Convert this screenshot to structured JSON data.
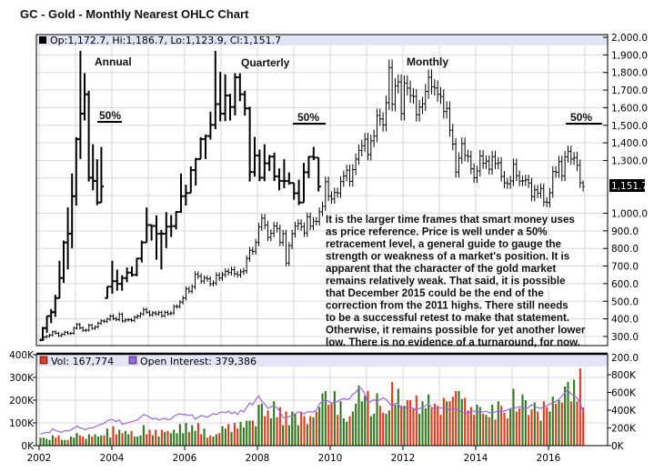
{
  "title": "GC - Gold - Monthly Nearest OHLC Chart",
  "price_legend": "Op:1,172.7, Hi:1,186.7, Lo:1,123.9, Cl:1,151.7",
  "last_price_tag": "1,151.7",
  "labels": {
    "annual": "Annual",
    "quarterly": "Quarterly",
    "monthly": "Monthly",
    "fifty_pct": "50%"
  },
  "annotation": {
    "lines": [
      "It is the larger time frames that smart money uses",
      "as price reference. Price is well under a 50%",
      "retracement level, a general guide to gauge the",
      "strength or weakness of a market's position.  It is",
      "apparent that the character of the gold market",
      "remains relatively weak.  That said, it is possible",
      "that December 2015 could be the end of the",
      "correction from the 2011 highs.  There still needs",
      "to be a successful retest to make that statement.",
      "Otherwise, it remains possible for yet another lower",
      "low.  There is no evidence of a turnaround, for now."
    ]
  },
  "volume_legend": {
    "vol": "Vol: 167,774",
    "oi": "Open Interest: 379,386"
  },
  "colors": {
    "up": "#2f7a1f",
    "down": "#e2391c",
    "open_interest": "#9a66e6",
    "legend_band": "#e4e4f7",
    "grid": "#d9d9d9"
  },
  "chart_data": [
    {
      "type": "ohlc",
      "title": "GC - Gold - Monthly Nearest OHLC Chart",
      "y_axis": {
        "side": "right",
        "ylim": [
          250,
          2000
        ],
        "ticks": [
          "2,000.0",
          "1,900.0",
          "1,800.0",
          "1,700.0",
          "1,600.0",
          "1,500.0",
          "1,400.0",
          "1,300.0",
          "1,000.0",
          "900.0",
          "800.0",
          "700.0",
          "600.0",
          "500.0",
          "400.0",
          "300.0",
          "200.0"
        ],
        "tick_values": [
          2000,
          1900,
          1800,
          1700,
          1600,
          1500,
          1400,
          1300,
          1000,
          900,
          800,
          700,
          600,
          500,
          400,
          300,
          200
        ]
      },
      "grid": true,
      "series": [
        {
          "name": "Annual",
          "start": "2002",
          "ohlc": [
            [
              279,
              354,
              278,
              348
            ],
            [
              348,
              417,
              320,
              416
            ],
            [
              416,
              456,
              375,
              438
            ],
            [
              438,
              537,
              411,
              518
            ],
            [
              518,
              730,
              517,
              632
            ],
            [
              632,
              845,
              604,
              834
            ],
            [
              834,
              1033,
              681,
              884
            ],
            [
              884,
              1226,
              802,
              1097
            ],
            [
              1097,
              1432,
              1044,
              1421
            ],
            [
              1421,
              1923,
              1308,
              1566
            ],
            [
              1566,
              1796,
              1527,
              1676
            ],
            [
              1676,
              1696,
              1180,
              1202
            ],
            [
              1202,
              1392,
              1131,
              1184
            ],
            [
              1184,
              1307,
              1046,
              1061
            ],
            [
              1061,
              1377,
              1061,
              1152
            ]
          ],
          "fifty_pct_level": 1510
        },
        {
          "name": "Quarterly",
          "start": "2006-Q1",
          "ohlc": [
            [
              518,
              584,
              517,
              583
            ],
            [
              583,
              730,
              543,
              614
            ],
            [
              614,
              680,
              560,
              599
            ],
            [
              599,
              648,
              560,
              632
            ],
            [
              632,
              692,
              608,
              663
            ],
            [
              663,
              697,
              640,
              650
            ],
            [
              650,
              745,
              642,
              743
            ],
            [
              743,
              845,
              720,
              834
            ],
            [
              834,
              1033,
              834,
              933
            ],
            [
              933,
              935,
              845,
              928
            ],
            [
              928,
              988,
              736,
              884
            ],
            [
              884,
              905,
              681,
              884
            ],
            [
              884,
              1007,
              802,
              924
            ],
            [
              924,
              990,
              865,
              927
            ],
            [
              927,
              1011,
              908,
              1008
            ],
            [
              1008,
              1226,
              1003,
              1097
            ],
            [
              1097,
              1162,
              1044,
              1115
            ],
            [
              1115,
              1266,
              1115,
              1245
            ],
            [
              1245,
              1315,
              1157,
              1308
            ],
            [
              1308,
              1432,
              1308,
              1421
            ],
            [
              1421,
              1447,
              1308,
              1439
            ],
            [
              1439,
              1577,
              1419,
              1502
            ],
            [
              1502,
              1923,
              1478,
              1620
            ],
            [
              1620,
              1803,
              1522,
              1566
            ],
            [
              1566,
              1790,
              1523,
              1669
            ],
            [
              1669,
              1679,
              1527,
              1604
            ],
            [
              1604,
              1796,
              1556,
              1773
            ],
            [
              1773,
              1796,
              1637,
              1676
            ],
            [
              1676,
              1696,
              1555,
              1596
            ],
            [
              1596,
              1605,
              1180,
              1234
            ],
            [
              1234,
              1434,
              1208,
              1328
            ],
            [
              1328,
              1362,
              1182,
              1202
            ],
            [
              1202,
              1392,
              1182,
              1284
            ],
            [
              1284,
              1331,
              1240,
              1322
            ],
            [
              1322,
              1345,
              1183,
              1210
            ],
            [
              1210,
              1255,
              1131,
              1184
            ],
            [
              1184,
              1307,
              1142,
              1183
            ],
            [
              1183,
              1232,
              1162,
              1172
            ],
            [
              1172,
              1172,
              1077,
              1114
            ],
            [
              1114,
              1191,
              1046,
              1061
            ],
            [
              1061,
              1287,
              1061,
              1233
            ],
            [
              1233,
              1325,
              1200,
              1321
            ],
            [
              1321,
              1377,
              1302,
              1316
            ],
            [
              1316,
              1316,
              1124,
              1152
            ]
          ],
          "fifty_pct_level": 1500
        },
        {
          "name": "Monthly",
          "start": "2002-01",
          "close": [
            282,
            296,
            301,
            308,
            326,
            318,
            304,
            312,
            324,
            316,
            318,
            347,
            368,
            348,
            334,
            336,
            364,
            346,
            354,
            375,
            388,
            386,
            398,
            416,
            402,
            396,
            426,
            388,
            394,
            395,
            391,
            409,
            416,
            428,
            453,
            438,
            423,
            434,
            428,
            436,
            417,
            437,
            429,
            433,
            470,
            470,
            495,
            518,
            570,
            557,
            583,
            654,
            643,
            614,
            632,
            627,
            599,
            604,
            648,
            632,
            651,
            670,
            663,
            680,
            656,
            650,
            667,
            673,
            743,
            789,
            783,
            834,
            923,
            972,
            933,
            864,
            886,
            928,
            913,
            834,
            884,
            717,
            816,
            884,
            928,
            942,
            924,
            888,
            980,
            927,
            955,
            953,
            1008,
            1040,
            1179,
            1097,
            1081,
            1118,
            1115,
            1180,
            1212,
            1245,
            1181,
            1248,
            1308,
            1357,
            1384,
            1421,
            1333,
            1411,
            1439,
            1556,
            1536,
            1502,
            1628,
            1828,
            1620,
            1724,
            1746,
            1566,
            1740,
            1711,
            1669,
            1664,
            1560,
            1604,
            1622,
            1692,
            1773,
            1719,
            1712,
            1676,
            1663,
            1578,
            1596,
            1472,
            1393,
            1234,
            1313,
            1396,
            1328,
            1323,
            1253,
            1202,
            1240,
            1326,
            1284,
            1296,
            1250,
            1322,
            1282,
            1287,
            1210,
            1172,
            1168,
            1184,
            1279,
            1213,
            1183,
            1184,
            1190,
            1172,
            1095,
            1133,
            1114,
            1141,
            1064,
            1061,
            1116,
            1237,
            1233,
            1294,
            1213,
            1321,
            1351,
            1308,
            1316,
            1273,
            1173,
            1151.7
          ],
          "last_bar": {
            "open": 1172.7,
            "high": 1186.7,
            "low": 1123.9,
            "close": 1151.7
          },
          "fifty_pct_level": 1500
        }
      ]
    },
    {
      "type": "bar+line",
      "x_ticks": [
        "2002",
        "2004",
        "2006",
        "2008",
        "2010",
        "2012",
        "2014",
        "2016"
      ],
      "left_axis": {
        "ticks": [
          "400K",
          "300K",
          "200K",
          "100K",
          "0K"
        ],
        "ylim": [
          0,
          400
        ]
      },
      "right_axis": {
        "ticks": [
          "800K",
          "600K",
          "400K",
          "200K",
          "0K"
        ],
        "ylim": [
          0,
          800
        ]
      },
      "series": [
        {
          "name": "Vol",
          "unit": "K",
          "values": [
            35,
            35,
            30,
            25,
            45,
            35,
            45,
            25,
            25,
            25,
            40,
            35,
            55,
            45,
            40,
            30,
            50,
            40,
            50,
            40,
            45,
            45,
            75,
            35,
            85,
            50,
            70,
            55,
            65,
            50,
            65,
            40,
            40,
            45,
            90,
            50,
            70,
            45,
            70,
            40,
            70,
            60,
            65,
            55,
            70,
            55,
            95,
            55,
            100,
            60,
            90,
            65,
            100,
            50,
            75,
            35,
            45,
            40,
            50,
            55,
            85,
            75,
            95,
            60,
            100,
            75,
            105,
            80,
            110,
            110,
            110,
            85,
            180,
            185,
            130,
            155,
            120,
            195,
            125,
            170,
            90,
            150,
            90,
            150,
            140,
            90,
            150,
            130,
            95,
            130,
            125,
            150,
            170,
            230,
            240,
            180,
            185,
            240,
            135,
            195,
            120,
            105,
            130,
            150,
            185,
            265,
            195,
            220,
            240,
            130,
            140,
            230,
            175,
            145,
            140,
            155,
            280,
            180,
            250,
            175,
            175,
            200,
            200,
            165,
            220,
            140,
            195,
            165,
            225,
            165,
            185,
            175,
            135,
            210,
            195,
            195,
            215,
            240,
            240,
            205,
            210,
            155,
            170,
            135,
            180,
            170,
            140,
            135,
            125,
            180,
            115,
            195,
            175,
            145,
            120,
            160,
            250,
            150,
            165,
            225,
            200,
            135,
            160,
            190,
            150,
            110,
            195,
            170,
            150,
            215,
            185,
            200,
            190,
            260,
            280,
            195,
            290,
            195,
            340,
            167.8
          ]
        },
        {
          "name": "Open Interest",
          "unit": "K",
          "values": [
            130,
            140,
            150,
            145,
            190,
            170,
            160,
            150,
            170,
            165,
            175,
            200,
            220,
            200,
            190,
            180,
            200,
            200,
            210,
            230,
            240,
            250,
            280,
            290,
            290,
            270,
            290,
            240,
            250,
            260,
            270,
            280,
            290,
            320,
            350,
            340,
            320,
            300,
            310,
            290,
            300,
            310,
            290,
            300,
            330,
            350,
            360,
            350,
            350,
            340,
            350,
            300,
            320,
            340,
            330,
            320,
            340,
            360,
            350,
            370,
            380,
            370,
            390,
            360,
            380,
            350,
            400,
            380,
            430,
            480,
            460,
            520,
            560,
            500,
            470,
            420,
            440,
            440,
            430,
            380,
            320,
            310,
            330,
            330,
            360,
            380,
            370,
            360,
            380,
            380,
            380,
            400,
            470,
            500,
            520,
            500,
            480,
            490,
            500,
            520,
            530,
            520,
            530,
            580,
            600,
            650,
            640,
            580,
            480,
            500,
            520,
            500,
            520,
            540,
            520,
            480,
            440,
            480,
            470,
            420,
            420,
            440,
            430,
            420,
            400,
            420,
            430,
            450,
            470,
            430,
            420,
            410,
            430,
            420,
            410,
            400,
            420,
            410,
            400,
            380,
            370,
            360,
            390,
            390,
            380,
            380,
            380,
            390,
            370,
            370,
            380,
            390,
            380,
            390,
            400,
            420,
            420,
            430,
            440,
            430,
            420,
            430,
            460,
            440,
            430,
            420,
            440,
            450,
            470,
            480,
            500,
            520,
            560,
            600,
            630,
            580,
            560,
            540,
            480,
            379.4
          ]
        }
      ]
    }
  ]
}
